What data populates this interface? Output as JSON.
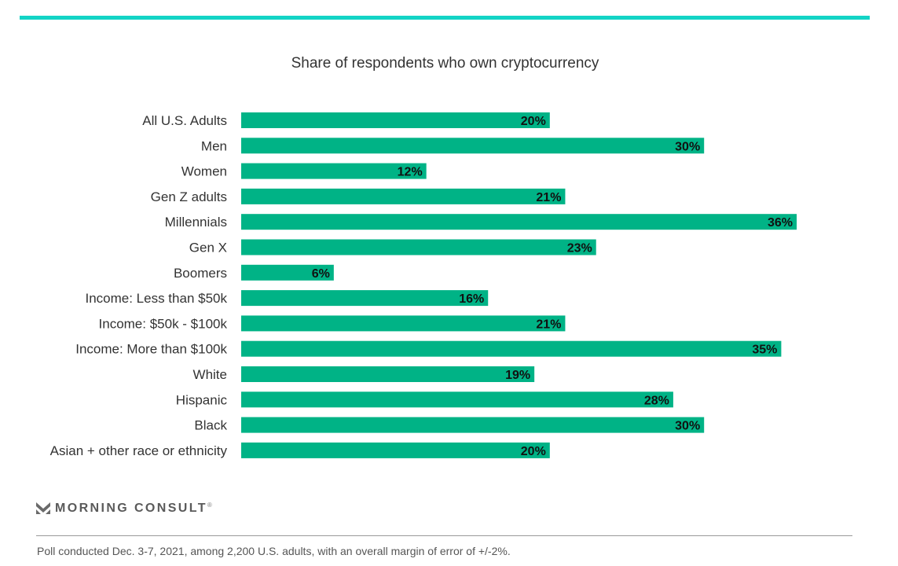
{
  "colors": {
    "accent": "#13d4c6",
    "bar": "#00b386",
    "label": "#333333",
    "value": "#111111"
  },
  "chart_data": {
    "type": "bar",
    "orientation": "horizontal",
    "title": "Share of respondents who own cryptocurrency",
    "xlabel": "",
    "ylabel": "",
    "xlim": [
      0,
      36
    ],
    "grid": false,
    "categories": [
      "All U.S. Adults",
      "Men",
      "Women",
      "Gen Z adults",
      "Millennials",
      "Gen X",
      "Boomers",
      "Income: Less than $50k",
      "Income: $50k - $100k",
      "Income: More than $100k",
      "White",
      "Hispanic",
      "Black",
      "Asian + other race or ethnicity"
    ],
    "values": [
      20,
      30,
      12,
      21,
      36,
      23,
      6,
      16,
      21,
      35,
      19,
      28,
      30,
      20
    ],
    "value_labels": [
      "20%",
      "30%",
      "12%",
      "21%",
      "36%",
      "23%",
      "6%",
      "16%",
      "21%",
      "35%",
      "19%",
      "28%",
      "30%",
      "20%"
    ]
  },
  "branding": {
    "logo_icon": "morning-consult-m-icon",
    "logo_text": "MORNING CONSULT",
    "logo_mark": "®"
  },
  "footnote": "Poll conducted Dec. 3-7, 2021, among 2,200 U.S. adults, with an overall margin of error of +/-2%."
}
